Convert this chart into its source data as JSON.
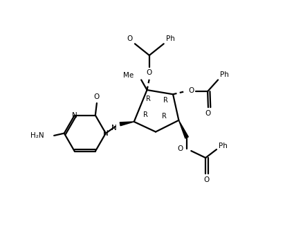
{
  "bg_color": "#ffffff",
  "line_color": "#000000",
  "label_color": "#000000",
  "lw": 1.6,
  "lw_bold": 4.0,
  "fig_width": 4.25,
  "fig_height": 3.31,
  "dpi": 100,
  "xlim": [
    0,
    10
  ],
  "ylim": [
    0,
    7.8
  ]
}
